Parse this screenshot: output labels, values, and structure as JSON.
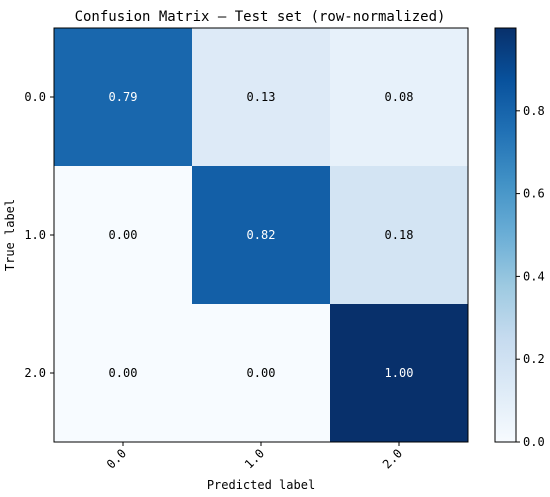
{
  "chart_data": {
    "type": "heatmap",
    "title": "Confusion Matrix — Test set (row-normalized)",
    "xlabel": "Predicted label",
    "ylabel": "True label",
    "x_categories": [
      "0.0",
      "1.0",
      "2.0"
    ],
    "y_categories": [
      "0.0",
      "1.0",
      "2.0"
    ],
    "values": [
      [
        0.79,
        0.13,
        0.08
      ],
      [
        0.0,
        0.82,
        0.18
      ],
      [
        0.0,
        0.0,
        1.0
      ]
    ],
    "cell_labels": [
      [
        "0.79",
        "0.13",
        "0.08"
      ],
      [
        "0.00",
        "0.82",
        "0.18"
      ],
      [
        "0.00",
        "0.00",
        "1.00"
      ]
    ],
    "colormap": "Blues",
    "colorbar": {
      "range": [
        0,
        1
      ],
      "ticks": [
        0.0,
        0.2,
        0.4,
        0.6,
        0.8
      ],
      "tick_labels": [
        "0.0",
        "0.2",
        "0.4",
        "0.6",
        "0.8"
      ]
    }
  }
}
